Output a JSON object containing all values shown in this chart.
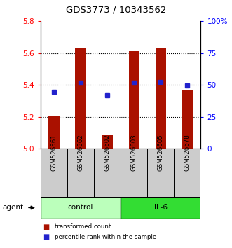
{
  "title": "GDS3773 / 10343562",
  "samples": [
    "GSM526561",
    "GSM526562",
    "GSM526602",
    "GSM526603",
    "GSM526605",
    "GSM526678"
  ],
  "red_values": [
    5.21,
    5.63,
    5.085,
    5.61,
    5.63,
    5.37
  ],
  "blue_values": [
    5.355,
    5.415,
    5.335,
    5.415,
    5.42,
    5.395
  ],
  "ylim_left": [
    5.0,
    5.8
  ],
  "ylim_right": [
    0,
    100
  ],
  "yticks_left": [
    5.0,
    5.2,
    5.4,
    5.6,
    5.8
  ],
  "yticks_right": [
    0,
    25,
    50,
    75,
    100
  ],
  "ytick_labels_right": [
    "0",
    "25",
    "50",
    "75",
    "100%"
  ],
  "bar_color": "#AA1100",
  "dot_color": "#2222CC",
  "control_color": "#BBFFBB",
  "il6_color": "#33DD33",
  "bar_width": 0.4,
  "sample_bg": "#CCCCCC"
}
